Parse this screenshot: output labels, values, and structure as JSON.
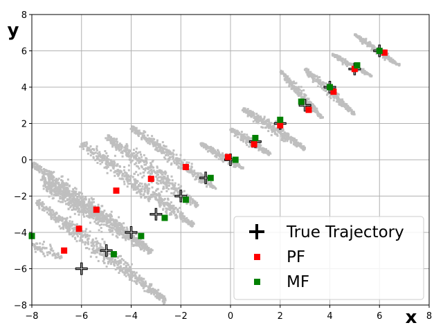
{
  "chart_data": {
    "type": "scatter",
    "xlabel": "x",
    "ylabel": "y",
    "xlim": [
      -8,
      8
    ],
    "ylim": [
      -8,
      8
    ],
    "x_ticks": [
      "−8",
      "−6",
      "−4",
      "−2",
      "0",
      "2",
      "4",
      "6",
      "8"
    ],
    "y_ticks": [
      "−8",
      "−6",
      "−4",
      "−2",
      "0",
      "2",
      "4",
      "6",
      "8"
    ],
    "grid": true,
    "legend_position": "bottom-right",
    "colors": {
      "particles": "#bfbfbf",
      "true_trajectory": "#000000",
      "pf": "#ff0000",
      "mf": "#008000",
      "grid": "#b0b0b0"
    },
    "particle_clouds": [
      {
        "from": [
          -8.0,
          -4.6
        ],
        "to": [
          -6.8,
          -5.4
        ],
        "width": 0.3,
        "count": 70
      },
      {
        "from": [
          -7.8,
          -2.3
        ],
        "to": [
          -2.6,
          -7.8
        ],
        "width": 0.32,
        "count": 650
      },
      {
        "from": [
          -8.0,
          -0.2
        ],
        "to": [
          -3.3,
          -4.9
        ],
        "width": 0.3,
        "count": 520
      },
      {
        "from": [
          -7.6,
          -1.3
        ],
        "to": [
          -5.3,
          -3.2
        ],
        "width": 0.35,
        "count": 200
      },
      {
        "from": [
          -7.6,
          -1.0
        ],
        "to": [
          -3.2,
          -5.1
        ],
        "width": 0.34,
        "count": 400
      },
      {
        "from": [
          -6.0,
          0.9
        ],
        "to": [
          -1.5,
          -3.6
        ],
        "width": 0.33,
        "count": 480
      },
      {
        "from": [
          -5.0,
          1.3
        ],
        "to": [
          -1.3,
          -2.6
        ],
        "width": 0.3,
        "count": 380
      },
      {
        "from": [
          -4.0,
          1.8
        ],
        "to": [
          -0.6,
          -1.6
        ],
        "width": 0.25,
        "count": 330
      },
      {
        "from": [
          -1.2,
          0.9
        ],
        "to": [
          0.5,
          -0.5
        ],
        "width": 0.15,
        "count": 200
      },
      {
        "from": [
          0.0,
          1.7
        ],
        "to": [
          1.6,
          0.3
        ],
        "width": 0.16,
        "count": 220
      },
      {
        "from": [
          0.5,
          2.8
        ],
        "to": [
          3.0,
          0.6
        ],
        "width": 0.2,
        "count": 330
      },
      {
        "from": [
          2.0,
          4.9
        ],
        "to": [
          3.7,
          2.3
        ],
        "width": 0.14,
        "count": 260
      },
      {
        "from": [
          3.0,
          5.0
        ],
        "to": [
          5.0,
          2.5
        ],
        "width": 0.16,
        "count": 280
      },
      {
        "from": [
          4.1,
          5.8
        ],
        "to": [
          5.7,
          4.6
        ],
        "width": 0.11,
        "count": 180
      },
      {
        "from": [
          5.0,
          6.9
        ],
        "to": [
          6.8,
          5.2
        ],
        "width": 0.13,
        "count": 200
      }
    ],
    "series": [
      {
        "name": "True Trajectory",
        "marker": "plus",
        "points": [
          [
            -6,
            -6
          ],
          [
            -5,
            -5
          ],
          [
            -4,
            -4
          ],
          [
            -3,
            -3
          ],
          [
            -2,
            -2
          ],
          [
            -1,
            -1
          ],
          [
            0,
            0
          ],
          [
            1,
            1
          ],
          [
            2,
            2
          ],
          [
            3,
            3
          ],
          [
            4,
            4
          ],
          [
            5,
            5
          ],
          [
            6,
            6
          ]
        ]
      },
      {
        "name": "PF",
        "marker": "square",
        "points": [
          [
            -6.7,
            -5.0
          ],
          [
            -6.1,
            -3.8
          ],
          [
            -5.4,
            -2.75
          ],
          [
            -4.6,
            -1.7
          ],
          [
            -3.2,
            -1.05
          ],
          [
            -1.8,
            -0.4
          ],
          [
            -0.1,
            0.15
          ],
          [
            0.95,
            0.85
          ],
          [
            2.0,
            1.9
          ],
          [
            3.15,
            2.75
          ],
          [
            4.15,
            3.75
          ],
          [
            5.0,
            5.0
          ],
          [
            6.2,
            5.9
          ]
        ]
      },
      {
        "name": "MF",
        "marker": "square",
        "points": [
          [
            -8.0,
            -4.2
          ],
          [
            -4.7,
            -5.2
          ],
          [
            -3.6,
            -4.2
          ],
          [
            -2.65,
            -3.2
          ],
          [
            -1.8,
            -2.2
          ],
          [
            -0.8,
            -1.0
          ],
          [
            0.2,
            0.0
          ],
          [
            1.0,
            1.2
          ],
          [
            2.0,
            2.2
          ],
          [
            2.85,
            3.2
          ],
          [
            4.0,
            4.0
          ],
          [
            5.1,
            5.2
          ],
          [
            6.0,
            6.0
          ]
        ]
      }
    ]
  }
}
